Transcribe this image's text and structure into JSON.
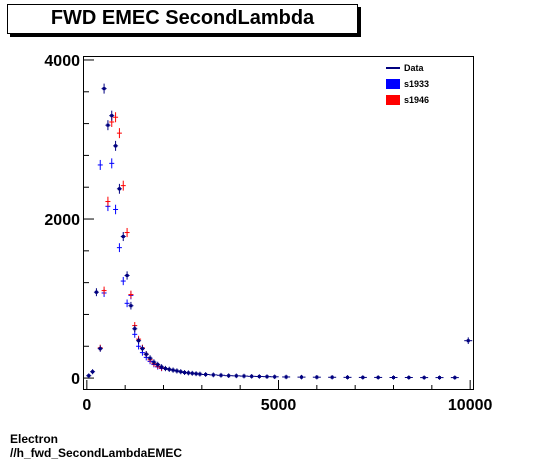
{
  "title": "FWD EMEC SecondLambda",
  "footer": {
    "line1": "Electron",
    "line2": "//h_fwd_SecondLambdaEMEC"
  },
  "colors": {
    "data": "#00007f",
    "s1933": "#0000ff",
    "s1946": "#ff0000"
  },
  "chart_data": {
    "type": "scatter",
    "title": "FWD EMEC SecondLambda",
    "xlim": [
      -100,
      10100
    ],
    "ylim": [
      -150,
      4050
    ],
    "xticks": [
      0,
      5000,
      10000
    ],
    "yticks": [
      0,
      2000,
      4000
    ],
    "tick_labels": {
      "x": [
        "0",
        "5000",
        "10000"
      ],
      "y": [
        "0",
        "2000",
        "4000"
      ]
    },
    "legend_position": "top-right",
    "legend": [
      {
        "name": "Data",
        "marker": "line",
        "color": "#00007f"
      },
      {
        "name": "s1933",
        "marker": "box",
        "color": "#0000ff"
      },
      {
        "name": "s1946",
        "marker": "box",
        "color": "#ff0000"
      }
    ],
    "series": [
      {
        "name": "Data",
        "color": "#00007f",
        "x": [
          50,
          150,
          250,
          350,
          450,
          550,
          650,
          750,
          850,
          950,
          1050,
          1150,
          1250,
          1350,
          1450,
          1550,
          1650,
          1750,
          1850,
          1950,
          2050,
          2150,
          2250,
          2350,
          2450,
          2550,
          2650,
          2750,
          2850,
          2950,
          3100,
          3300,
          3500,
          3700,
          3900,
          4100,
          4300,
          4500,
          4700,
          4900,
          5200,
          5600,
          6000,
          6400,
          6800,
          7200,
          7600,
          8000,
          8400,
          8800,
          9200,
          9600,
          9950
        ],
        "y": [
          30,
          80,
          1080,
          370,
          3640,
          3180,
          3300,
          2920,
          2380,
          1780,
          1290,
          910,
          620,
          470,
          370,
          300,
          250,
          200,
          170,
          140,
          120,
          110,
          100,
          90,
          80,
          70,
          65,
          60,
          55,
          50,
          45,
          40,
          35,
          30,
          28,
          25,
          22,
          20,
          18,
          16,
          14,
          12,
          11,
          10,
          9,
          8,
          8,
          7,
          7,
          6,
          6,
          6,
          470
        ]
      },
      {
        "name": "s1933",
        "color": "#0000ff",
        "x": [
          350,
          450,
          550,
          650,
          750,
          850,
          950,
          1050,
          1150,
          1250,
          1350,
          1450,
          1550,
          1650,
          1750,
          1850,
          1950
        ],
        "y": [
          2680,
          1070,
          2160,
          2700,
          2120,
          1640,
          1220,
          940,
          1040,
          550,
          400,
          320,
          260,
          210,
          170,
          140,
          120
        ]
      },
      {
        "name": "s1946",
        "color": "#ff0000",
        "x": [
          350,
          450,
          550,
          650,
          750,
          850,
          950,
          1050,
          1150,
          1250,
          1350,
          1450,
          1550,
          1650,
          1750,
          1850,
          1950
        ],
        "y": [
          380,
          1100,
          2220,
          3220,
          3280,
          3080,
          2420,
          1830,
          1050,
          660,
          490,
          380,
          300,
          230,
          180,
          150,
          125
        ]
      }
    ]
  }
}
